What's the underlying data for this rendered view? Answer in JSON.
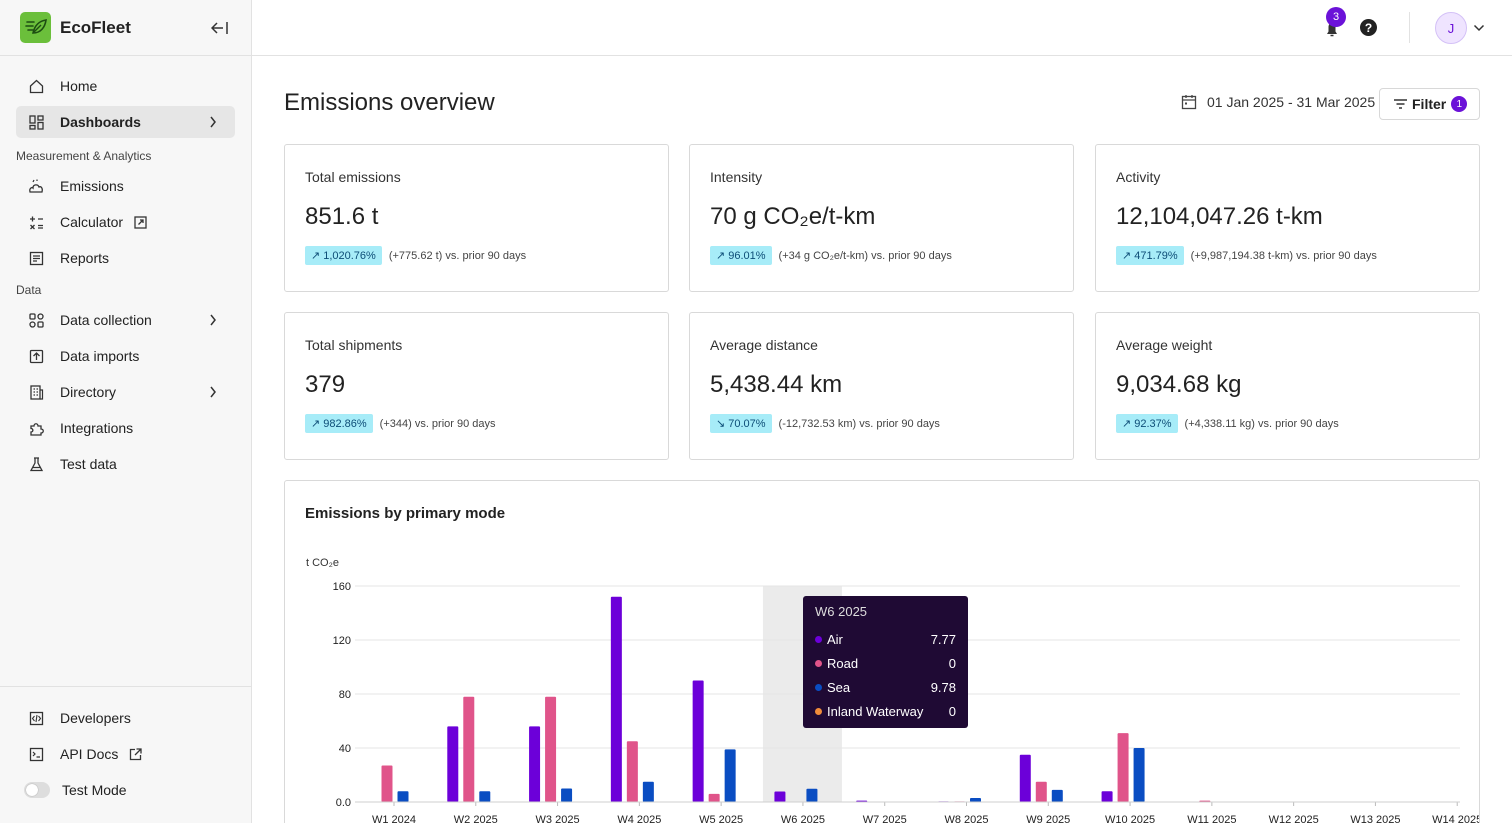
{
  "app": {
    "name": "EcoFleet"
  },
  "sidebar": {
    "nav_top": [
      {
        "label": "Home",
        "icon": "home-icon"
      },
      {
        "label": "Dashboards",
        "icon": "dashboard-icon",
        "active": true
      }
    ],
    "section_measurement": "Measurement & Analytics",
    "nav_measurement": [
      {
        "label": "Emissions",
        "icon": "emissions-icon"
      },
      {
        "label": "Calculator",
        "icon": "calculator-icon"
      },
      {
        "label": "Reports",
        "icon": "reports-icon"
      }
    ],
    "section_data": "Data",
    "nav_data": [
      {
        "label": "Data collection",
        "icon": "data-collection-icon"
      },
      {
        "label": "Data imports",
        "icon": "data-imports-icon"
      },
      {
        "label": "Directory",
        "icon": "directory-icon"
      },
      {
        "label": "Integrations",
        "icon": "integrations-icon"
      },
      {
        "label": "Test data",
        "icon": "test-data-icon"
      }
    ],
    "bottom": [
      {
        "label": "Developers",
        "icon": "developers-icon"
      },
      {
        "label": "API Docs",
        "icon": "api-docs-icon"
      },
      {
        "label": "Test Mode",
        "icon": "toggle"
      }
    ]
  },
  "topbar": {
    "notification_count": "3",
    "help_label": "?",
    "avatar_initial": "J"
  },
  "page": {
    "title": "Emissions overview",
    "date_range": "01 Jan 2025 - 31 Mar 2025",
    "filter_label": "Filter",
    "filter_count": "1"
  },
  "cards": [
    {
      "title": "Total emissions",
      "value": "851.6 t",
      "change": "1,020.76%",
      "direction": "up",
      "detail": "(+775.62 t) vs. prior 90 days"
    },
    {
      "title": "Intensity",
      "value": "70 g CO₂e/t-km",
      "change": "96.01%",
      "direction": "up",
      "detail": "(+34 g CO₂e/t-km) vs. prior 90 days"
    },
    {
      "title": "Activity",
      "value": "12,104,047.26 t-km",
      "change": "471.79%",
      "direction": "up",
      "detail": "(+9,987,194.38 t-km) vs. prior 90 days"
    },
    {
      "title": "Total shipments",
      "value": "379",
      "change": "982.86%",
      "direction": "up",
      "detail": "(+344) vs. prior 90 days"
    },
    {
      "title": "Average distance",
      "value": "5,438.44 km",
      "change": "70.07%",
      "direction": "down",
      "detail": "(-12,732.53 km) vs. prior 90 days"
    },
    {
      "title": "Average weight",
      "value": "9,034.68 kg",
      "change": "92.37%",
      "direction": "up",
      "detail": "(+4,338.11 kg) vs. prior 90 days"
    }
  ],
  "chart_data": {
    "type": "bar",
    "title": "Emissions by primary mode",
    "ylabel": "t CO₂e",
    "ylim": [
      0,
      160
    ],
    "yticks": [
      "0.0",
      "40",
      "80",
      "120",
      "160"
    ],
    "categories": [
      "W1 2024",
      "W2 2025",
      "W3 2025",
      "W4 2025",
      "W5 2025",
      "W6 2025",
      "W7 2025",
      "W8 2025",
      "W9 2025",
      "W10 2025",
      "W11 2025",
      "W12 2025",
      "W13 2025",
      "W14 2025"
    ],
    "series": [
      {
        "name": "Air",
        "color": "#6c00d9",
        "values": [
          0,
          56,
          56,
          152,
          90,
          7.77,
          1,
          0.5,
          35,
          8,
          0,
          0,
          0,
          0
        ]
      },
      {
        "name": "Road",
        "color": "#e0548a",
        "values": [
          27,
          78,
          78,
          45,
          6,
          0,
          0,
          0.5,
          15,
          51,
          1,
          0,
          0,
          0
        ]
      },
      {
        "name": "Sea",
        "color": "#0a4dc2",
        "values": [
          8,
          8,
          10,
          15,
          39,
          9.78,
          0,
          3,
          9,
          40,
          0,
          0,
          0,
          0
        ]
      }
    ],
    "highlight_index": 5,
    "tooltip": {
      "title": "W6 2025",
      "rows": [
        {
          "name": "Air",
          "color": "#6c00d9",
          "value": "7.77"
        },
        {
          "name": "Road",
          "color": "#e0548a",
          "value": "0"
        },
        {
          "name": "Sea",
          "color": "#0a4dc2",
          "value": "9.78"
        },
        {
          "name": "Inland Waterway",
          "color": "#f08c3a",
          "value": "0"
        }
      ]
    }
  }
}
